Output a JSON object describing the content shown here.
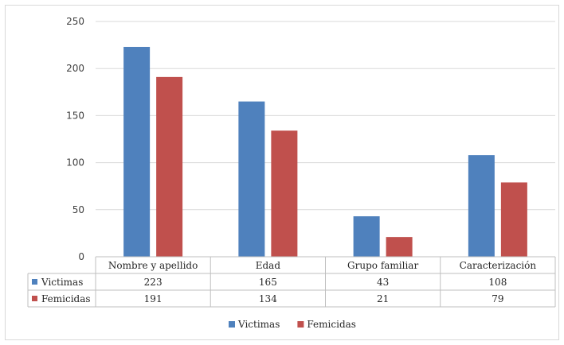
{
  "chart_data": {
    "type": "bar",
    "categories": [
      "Nombre y apellido",
      "Edad",
      "Grupo familiar",
      "Caracterización"
    ],
    "series": [
      {
        "name": "Victimas",
        "values": [
          223,
          165,
          43,
          108
        ],
        "color": "#4f81bd"
      },
      {
        "name": "Femicidas",
        "values": [
          191,
          134,
          21,
          79
        ],
        "color": "#c0504d"
      }
    ],
    "ylim": [
      0,
      250
    ],
    "yticks": [
      0,
      50,
      100,
      150,
      200,
      250
    ],
    "grid": true,
    "data_table": true,
    "legend_position": "bottom",
    "gridline_color": "#d9d9d9",
    "axis_color": "#bfbfbf"
  }
}
